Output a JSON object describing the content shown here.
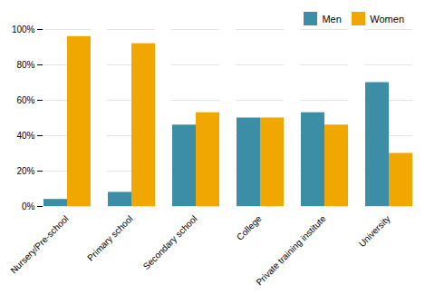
{
  "chart_data": {
    "type": "bar",
    "categories": [
      "Nursery/Pre-school",
      "Primary school",
      "Secondary school",
      "College",
      "Private training institute",
      "University"
    ],
    "series": [
      {
        "name": "Men",
        "color": "#3b8ea5",
        "values": [
          4,
          8,
          46,
          50,
          53,
          70
        ]
      },
      {
        "name": "Women",
        "color": "#f0a800",
        "values": [
          96,
          92,
          53,
          50,
          46,
          30
        ]
      }
    ],
    "ylim": [
      0,
      100
    ],
    "yticks": [
      {
        "value": 0,
        "label": "0%"
      },
      {
        "value": 20,
        "label": "20%"
      },
      {
        "value": 40,
        "label": "40%"
      },
      {
        "value": 60,
        "label": "60%"
      },
      {
        "value": 80,
        "label": "80%"
      },
      {
        "value": 100,
        "label": "100%"
      }
    ],
    "grid": true,
    "legend": "upper right"
  }
}
